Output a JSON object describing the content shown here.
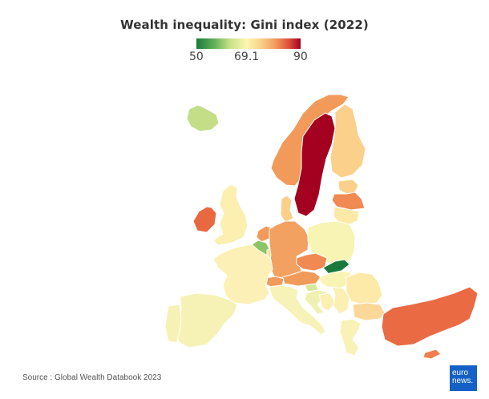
{
  "title": "Wealth inequality: Gini index (2022)",
  "legend": {
    "min_label": "50",
    "mid_label": "69.1",
    "max_label": "90",
    "scale": {
      "min": 50,
      "mid": 69.1,
      "max": 90
    },
    "colors": [
      "#1a7a3b",
      "#66b45a",
      "#c7e08a",
      "#fdf6b0",
      "#fbd08a",
      "#f29a5a",
      "#e0533b",
      "#a4001f"
    ]
  },
  "source": "Source : Global Wealth Databook 2023",
  "logo": {
    "line1": "euro",
    "line2": "news."
  },
  "map": {
    "type": "choropleth",
    "metric": "Gini index",
    "countries": [
      {
        "name": "Iceland",
        "value": 60,
        "color": "#c3de86"
      },
      {
        "name": "Norway",
        "value": 78,
        "color": "#f29a5a"
      },
      {
        "name": "Sweden",
        "value": 89,
        "color": "#a4001f"
      },
      {
        "name": "Finland",
        "value": 74,
        "color": "#fbd08a"
      },
      {
        "name": "Estonia",
        "value": 72,
        "color": "#fbd08a"
      },
      {
        "name": "Latvia",
        "value": 80,
        "color": "#f08a52"
      },
      {
        "name": "Lithuania",
        "value": 70,
        "color": "#fde9a6"
      },
      {
        "name": "Ireland",
        "value": 81,
        "color": "#e8683f"
      },
      {
        "name": "United Kingdom",
        "value": 69,
        "color": "#fcefb0"
      },
      {
        "name": "Denmark",
        "value": 73,
        "color": "#fbd08a"
      },
      {
        "name": "Netherlands",
        "value": 78,
        "color": "#f29a5a"
      },
      {
        "name": "Belgium",
        "value": 58,
        "color": "#8cc466"
      },
      {
        "name": "Luxembourg",
        "value": 71,
        "color": "#fbe2a0"
      },
      {
        "name": "Germany",
        "value": 78,
        "color": "#f3a160"
      },
      {
        "name": "Poland",
        "value": 68,
        "color": "#f8f4b4"
      },
      {
        "name": "Czechia",
        "value": 79,
        "color": "#f08a52"
      },
      {
        "name": "Austria",
        "value": 77,
        "color": "#f29a5a"
      },
      {
        "name": "Switzerland",
        "value": 77,
        "color": "#f29a5a"
      },
      {
        "name": "Slovakia",
        "value": 50,
        "color": "#1a7a3b"
      },
      {
        "name": "Hungary",
        "value": 68,
        "color": "#f8f4b4"
      },
      {
        "name": "Slovenia",
        "value": 63,
        "color": "#d8e89a"
      },
      {
        "name": "France",
        "value": 70,
        "color": "#fdf0b6"
      },
      {
        "name": "Spain",
        "value": 68,
        "color": "#f6f2b6"
      },
      {
        "name": "Portugal",
        "value": 68,
        "color": "#f6f2b6"
      },
      {
        "name": "Italy",
        "value": 68,
        "color": "#f7f3b8"
      },
      {
        "name": "Croatia",
        "value": 66,
        "color": "#eff1b0"
      },
      {
        "name": "Bosnia",
        "value": 69,
        "color": "#fbefb2"
      },
      {
        "name": "Serbia",
        "value": 69,
        "color": "#fbefb2"
      },
      {
        "name": "Romania",
        "value": 70,
        "color": "#fde9a8"
      },
      {
        "name": "Bulgaria",
        "value": 72,
        "color": "#fbd89a"
      },
      {
        "name": "Greece",
        "value": 68,
        "color": "#f8f2b6"
      },
      {
        "name": "Turkey",
        "value": 83,
        "color": "#ea6a43"
      },
      {
        "name": "Cyprus",
        "value": 80,
        "color": "#ef7f4c"
      }
    ]
  }
}
